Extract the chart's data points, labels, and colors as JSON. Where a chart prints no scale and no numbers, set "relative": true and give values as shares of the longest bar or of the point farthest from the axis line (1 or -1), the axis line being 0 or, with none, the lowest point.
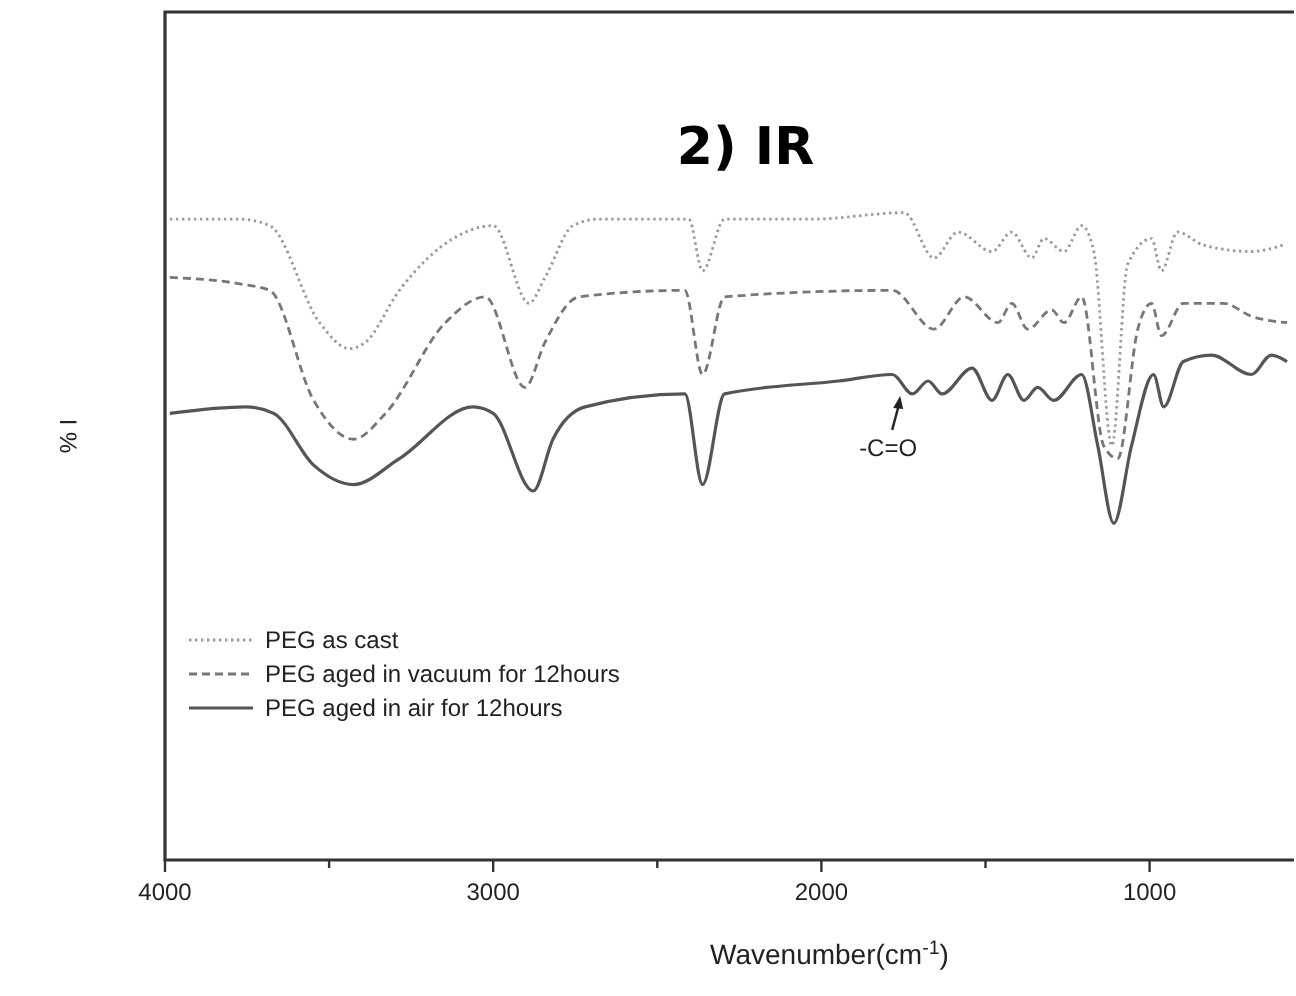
{
  "chart_data": {
    "type": "line",
    "title": "2) IR",
    "xlabel": "Wavenumber(cm$^{-1}$)",
    "ylabel": "I %",
    "relative": true,
    "legend": "bottom left",
    "xlim": [
      4000,
      560
    ],
    "xticks": [
      4000,
      {
        "value": 3500,
        "label": null
      },
      3000,
      {
        "value": 2500,
        "label": null
      },
      2000,
      {
        "value": 1500,
        "label": null
      },
      1000
    ],
    "annotations": [
      {
        "text": "-C=O",
        "x": 1760,
        "y": 0.72
      }
    ],
    "x": [
      3985,
      3772,
      3681,
      3529,
      3438,
      3389,
      3286,
      3122,
      3000,
      2891,
      2842,
      2757,
      2678,
      2404,
      2362,
      2295,
      2027,
      1748,
      1657,
      1584,
      1480,
      1420,
      1359,
      1322,
      1261,
      1207,
      1170,
      1115,
      1067,
      994,
      964,
      915,
      836,
      690,
      593
    ],
    "series": [
      {
        "name": "PEG as cast",
        "color": "#999999",
        "line_style": "dotted",
        "values": [
          0.99,
          0.99,
          0.98,
          0.83,
          0.79,
          0.8,
          0.88,
          0.96,
          0.98,
          0.86,
          0.9,
          0.98,
          0.99,
          0.99,
          0.91,
          0.99,
          0.99,
          1.0,
          0.93,
          0.97,
          0.94,
          0.97,
          0.93,
          0.96,
          0.94,
          0.98,
          0.94,
          0.64,
          0.92,
          0.96,
          0.91,
          0.97,
          0.95,
          0.94,
          0.95
        ]
      },
      {
        "name": "PEG aged in vacuum for 12hours",
        "color": "#777777",
        "line_style": "dashed",
        "x": [
          3985,
          3772,
          3681,
          3547,
          3426,
          3328,
          3146,
          3024,
          2903,
          2842,
          2739,
          2416,
          2362,
          2295,
          1784,
          1657,
          1565,
          1462,
          1420,
          1371,
          1298,
          1261,
          1207,
          1140,
          1097,
          1036,
          994,
          964,
          897,
          775,
          690,
          581
        ],
        "values": [
          0.9,
          0.89,
          0.88,
          0.71,
          0.65,
          0.69,
          0.83,
          0.87,
          0.73,
          0.8,
          0.87,
          0.88,
          0.75,
          0.87,
          0.88,
          0.82,
          0.87,
          0.83,
          0.86,
          0.82,
          0.85,
          0.83,
          0.87,
          0.64,
          0.62,
          0.82,
          0.86,
          0.81,
          0.86,
          0.86,
          0.84,
          0.83
        ]
      },
      {
        "name": "PEG aged in air for 12hours",
        "color": "#555555",
        "line_style": "solid",
        "x": [
          3985,
          3754,
          3669,
          3547,
          3426,
          3286,
          3061,
          3000,
          2878,
          2818,
          2720,
          2416,
          2362,
          2295,
          1948,
          1784,
          1723,
          1675,
          1632,
          1541,
          1480,
          1432,
          1383,
          1341,
          1292,
          1207,
          1158,
          1109,
          1055,
          988,
          957,
          897,
          812,
          690,
          629,
          581
        ],
        "values": [
          0.69,
          0.7,
          0.69,
          0.61,
          0.58,
          0.62,
          0.7,
          0.69,
          0.57,
          0.65,
          0.7,
          0.72,
          0.58,
          0.72,
          0.74,
          0.75,
          0.72,
          0.74,
          0.72,
          0.76,
          0.71,
          0.75,
          0.71,
          0.73,
          0.71,
          0.75,
          0.64,
          0.52,
          0.64,
          0.75,
          0.7,
          0.77,
          0.78,
          0.75,
          0.78,
          0.77
        ]
      }
    ]
  }
}
